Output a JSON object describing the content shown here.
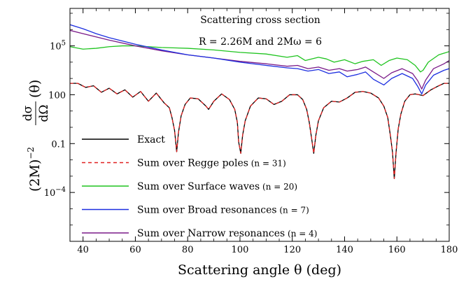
{
  "chart_data": {
    "type": "line",
    "title": "Scattering cross section",
    "subtitle": "R = 2.26M and 2Mω = 6",
    "xlabel": "Scattering angle θ (deg)",
    "ylabel_prefix": "(2M)",
    "ylabel_exponent": "−2",
    "ylabel_num": "dσ",
    "ylabel_den": "dΩ",
    "ylabel_suffix": "(θ)",
    "xlim": [
      35,
      180
    ],
    "ylim_log10": [
      -7,
      7.3
    ],
    "y_scale": "log",
    "grid": false,
    "legend_position": "bottom-left",
    "x_ticks": [
      40,
      60,
      80,
      100,
      120,
      140,
      160,
      180
    ],
    "x_tick_labels": [
      "40",
      "60",
      "80",
      "100",
      "120",
      "140",
      "160",
      "180"
    ],
    "y_ticks_log10": [
      5,
      2,
      -1,
      -4
    ],
    "y_tick_labels": [
      {
        "base": "10",
        "exp": "5"
      },
      {
        "base": "100",
        "exp": ""
      },
      {
        "base": "0.1",
        "exp": ""
      },
      {
        "base": "10",
        "exp": "−4"
      }
    ],
    "series": [
      {
        "name": "Exact",
        "label_n": "",
        "color": "#000000",
        "dash": "none",
        "x": [
          35,
          38,
          41,
          44,
          47,
          50,
          53,
          56,
          59,
          62,
          65,
          68,
          71,
          73,
          74,
          75,
          75.8,
          76.5,
          77.5,
          79,
          81,
          84,
          87,
          88,
          90,
          93,
          96,
          98,
          99,
          99.5,
          100.3,
          101,
          102,
          104,
          107,
          110,
          113,
          116,
          119,
          122,
          124,
          125.5,
          126.5,
          127.5,
          128.2,
          129,
          130,
          132,
          135,
          138,
          141,
          144,
          147,
          150,
          153,
          155,
          156.5,
          157.5,
          158.3,
          159,
          159.7,
          160.5,
          161.5,
          163,
          165,
          167,
          170,
          173,
          176,
          178,
          180
        ],
        "y": [
          2.7,
          2.7,
          2.45,
          2.55,
          2.15,
          2.4,
          2.05,
          2.3,
          1.85,
          2.2,
          1.6,
          2.1,
          1.5,
          1.2,
          0.6,
          -0.2,
          -1.5,
          -0.3,
          0.7,
          1.4,
          1.8,
          1.75,
          1.3,
          1.1,
          1.6,
          2.05,
          1.7,
          1.1,
          0.3,
          -0.9,
          -1.6,
          -0.5,
          0.4,
          1.3,
          1.8,
          1.75,
          1.4,
          1.6,
          2.0,
          2.0,
          1.7,
          1.1,
          0.3,
          -0.8,
          -1.6,
          -0.5,
          0.4,
          1.2,
          1.6,
          1.55,
          1.8,
          2.15,
          2.2,
          2.1,
          1.8,
          1.3,
          0.6,
          -0.5,
          -1.5,
          -3.15,
          -1.5,
          -0.1,
          0.8,
          1.6,
          2.0,
          2.05,
          1.95,
          2.3,
          2.55,
          2.7,
          2.7
        ]
      },
      {
        "name": "Sum over Regge poles",
        "label_n": "(n = 31)",
        "color": "#e02020",
        "dash": "5,4",
        "x": [
          35,
          38,
          41,
          44,
          47,
          50,
          53,
          56,
          59,
          62,
          65,
          68,
          71,
          73,
          74,
          75,
          75.8,
          76.5,
          77.5,
          79,
          81,
          84,
          87,
          88,
          90,
          93,
          96,
          98,
          99,
          99.5,
          100.3,
          101,
          102,
          104,
          107,
          110,
          113,
          116,
          119,
          122,
          124,
          125.5,
          126.5,
          127.5,
          128.2,
          129,
          130,
          132,
          135,
          138,
          141,
          144,
          147,
          150,
          153,
          155,
          156.5,
          157.5,
          158.3,
          159,
          159.7,
          160.5,
          161.5,
          163,
          165,
          167,
          170,
          173,
          176,
          178,
          180
        ],
        "y": [
          2.7,
          2.7,
          2.45,
          2.55,
          2.15,
          2.4,
          2.05,
          2.3,
          1.85,
          2.2,
          1.6,
          2.1,
          1.5,
          1.2,
          0.6,
          -0.2,
          -1.5,
          -0.3,
          0.7,
          1.4,
          1.8,
          1.75,
          1.3,
          1.1,
          1.6,
          2.05,
          1.7,
          1.1,
          0.3,
          -0.9,
          -1.6,
          -0.5,
          0.4,
          1.3,
          1.8,
          1.75,
          1.4,
          1.6,
          2.0,
          2.0,
          1.7,
          1.1,
          0.3,
          -0.8,
          -1.6,
          -0.5,
          0.4,
          1.2,
          1.6,
          1.55,
          1.8,
          2.15,
          2.2,
          2.1,
          1.8,
          1.3,
          0.6,
          -0.5,
          -1.5,
          -3.15,
          -1.5,
          -0.1,
          0.8,
          1.6,
          2.0,
          2.05,
          1.95,
          2.3,
          2.55,
          2.7,
          2.7
        ]
      },
      {
        "name": "Sum over Surface waves",
        "label_n": "(n = 20)",
        "color": "#1fc41f",
        "dash": "none",
        "x": [
          35,
          40,
          45,
          50,
          55,
          60,
          65,
          70,
          80,
          90,
          100,
          110,
          118,
          122,
          125,
          130,
          133,
          136,
          140,
          144,
          147,
          151,
          154,
          157,
          160,
          164,
          167,
          169,
          170,
          172,
          176,
          180
        ],
        "y": [
          4.95,
          4.8,
          4.85,
          4.95,
          5.0,
          5.0,
          4.95,
          4.9,
          4.85,
          4.75,
          4.6,
          4.5,
          4.3,
          4.4,
          4.1,
          4.3,
          4.2,
          4.0,
          4.15,
          3.9,
          4.05,
          4.15,
          3.8,
          4.1,
          4.25,
          4.15,
          3.8,
          3.4,
          3.5,
          4.0,
          4.45,
          4.65
        ]
      },
      {
        "name": "Sum over Broad resonances",
        "label_n": "(n = 7)",
        "color": "#1c2ee0",
        "dash": "none",
        "x": [
          35,
          40,
          45,
          50,
          60,
          70,
          80,
          90,
          100,
          110,
          118,
          122,
          126,
          130,
          134,
          138,
          141,
          145,
          148,
          151,
          155,
          158,
          162,
          166,
          168,
          169.5,
          171,
          174,
          178,
          180
        ],
        "y": [
          6.3,
          6.05,
          5.75,
          5.5,
          5.1,
          4.75,
          4.45,
          4.25,
          4.0,
          3.8,
          3.65,
          3.6,
          3.45,
          3.55,
          3.3,
          3.4,
          3.1,
          3.25,
          3.4,
          2.95,
          2.6,
          3.0,
          3.3,
          3.0,
          2.5,
          2.05,
          2.6,
          3.2,
          3.5,
          3.6
        ]
      },
      {
        "name": "Sum over Narrow resonances",
        "label_n": "(n = 4)",
        "color": "#7a1a88",
        "dash": "none",
        "x": [
          35,
          40,
          45,
          50,
          60,
          70,
          80,
          90,
          100,
          110,
          118,
          122,
          126,
          130,
          134,
          138,
          141,
          145,
          148,
          151,
          155,
          158,
          162,
          166,
          168,
          169.5,
          171,
          174,
          178,
          180
        ],
        "y": [
          5.95,
          5.75,
          5.55,
          5.35,
          5.0,
          4.7,
          4.45,
          4.25,
          4.05,
          3.9,
          3.75,
          3.8,
          3.6,
          3.7,
          3.5,
          3.6,
          3.45,
          3.55,
          3.7,
          3.4,
          3.0,
          3.35,
          3.6,
          3.3,
          2.85,
          2.35,
          2.9,
          3.6,
          3.9,
          4.1
        ]
      }
    ]
  }
}
